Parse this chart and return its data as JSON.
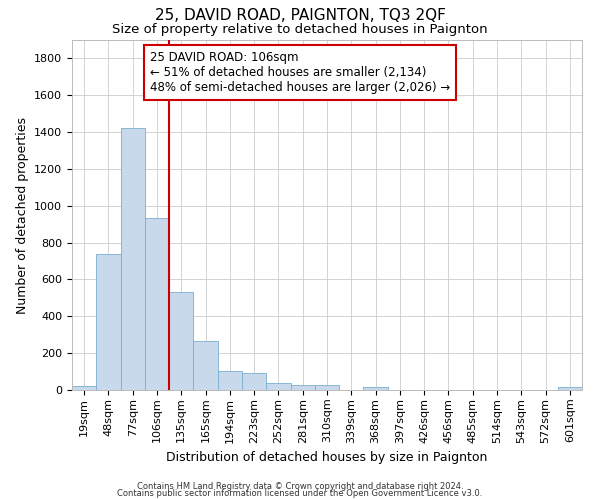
{
  "title": "25, DAVID ROAD, PAIGNTON, TQ3 2QF",
  "subtitle": "Size of property relative to detached houses in Paignton",
  "xlabel": "Distribution of detached houses by size in Paignton",
  "ylabel": "Number of detached properties",
  "categories": [
    "19sqm",
    "48sqm",
    "77sqm",
    "106sqm",
    "135sqm",
    "165sqm",
    "194sqm",
    "223sqm",
    "252sqm",
    "281sqm",
    "310sqm",
    "339sqm",
    "368sqm",
    "397sqm",
    "426sqm",
    "456sqm",
    "485sqm",
    "514sqm",
    "543sqm",
    "572sqm",
    "601sqm"
  ],
  "values": [
    22,
    740,
    1420,
    935,
    530,
    265,
    105,
    95,
    40,
    28,
    25,
    0,
    18,
    0,
    0,
    0,
    0,
    0,
    0,
    0,
    15
  ],
  "bar_color": "#c8d9ec",
  "bar_edgecolor": "#7aaed0",
  "grid_color": "#cccccc",
  "property_line_index": 3,
  "property_line_color": "#cc0000",
  "annotation_line1": "25 DAVID ROAD: 106sqm",
  "annotation_line2": "← 51% of detached houses are smaller (2,134)",
  "annotation_line3": "48% of semi-detached houses are larger (2,026) →",
  "annotation_box_edgecolor": "#cc0000",
  "annotation_box_facecolor": "#ffffff",
  "ylim": [
    0,
    1900
  ],
  "yticks": [
    0,
    200,
    400,
    600,
    800,
    1000,
    1200,
    1400,
    1600,
    1800
  ],
  "footer_line1": "Contains HM Land Registry data © Crown copyright and database right 2024.",
  "footer_line2": "Contains public sector information licensed under the Open Government Licence v3.0.",
  "title_fontsize": 11,
  "subtitle_fontsize": 9.5,
  "ylabel_fontsize": 9,
  "xlabel_fontsize": 9,
  "tick_fontsize": 8,
  "footer_fontsize": 6,
  "annotation_fontsize": 8.5
}
